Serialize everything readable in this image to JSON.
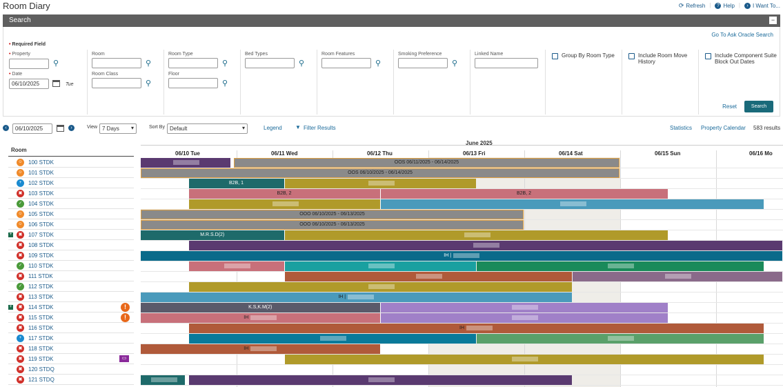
{
  "app": {
    "title": "Room Diary"
  },
  "toplinks": {
    "refresh": "Refresh",
    "help": "Help",
    "iwant": "I Want To..."
  },
  "search": {
    "title": "Search",
    "ask_oracle": "Go To Ask Oracle Search",
    "required_field": "Required Field",
    "property_label": "Property",
    "date_label": "Date",
    "date_value": "06/10/2025",
    "day_abbr": "Tue",
    "room_label": "Room",
    "room_class_label": "Room Class",
    "room_type_label": "Room Type",
    "floor_label": "Floor",
    "bed_types_label": "Bed Types",
    "room_features_label": "Room Features",
    "smoking_label": "Smoking Preference",
    "linked_name_label": "Linked Name",
    "group_by_label": "Group By Room Type",
    "room_move_label": "Include Room Move History",
    "component_label": "Include Component Suite Block Out Dates",
    "reset": "Reset",
    "search_button": "Search"
  },
  "toolbar": {
    "date": "06/10/2025",
    "view_label": "View",
    "view_value": "7 Days",
    "sortby_label": "Sort By",
    "sortby_value": "Default",
    "legend": "Legend",
    "filter": "Filter Results",
    "statistics": "Statistics",
    "property_calendar": "Property Calendar",
    "results": "583 results"
  },
  "grid": {
    "room_header": "Room",
    "month": "June 2025",
    "days": [
      "06/10 Tue",
      "06/11 Wed",
      "06/12 Thu",
      "06/13 Fri",
      "06/14 Sat",
      "06/15 Sun",
      "06/16 Mo"
    ],
    "rooms": [
      {
        "name": "100 STDK",
        "color": "#f08a2a",
        "icon": "person-icon"
      },
      {
        "name": "101 STDK",
        "color": "#f08a2a",
        "icon": "person-icon"
      },
      {
        "name": "102 STDK",
        "color": "#1a8ad0",
        "icon": "plus-icon"
      },
      {
        "name": "103 STDK",
        "color": "#d0302a",
        "icon": "lock-icon"
      },
      {
        "name": "104 STDK",
        "color": "#4a9a3a",
        "icon": "check-icon"
      },
      {
        "name": "105 STDK",
        "color": "#f08a2a",
        "icon": "person-icon"
      },
      {
        "name": "106 STDK",
        "color": "#f08a2a",
        "icon": "person-icon"
      },
      {
        "name": "107 STDK",
        "color": "#d0302a",
        "icon": "lock-icon"
      },
      {
        "name": "108 STDK",
        "color": "#d0302a",
        "icon": "lock-icon"
      },
      {
        "name": "109 STDK",
        "color": "#d0302a",
        "icon": "lock-icon"
      },
      {
        "name": "110 STDK",
        "color": "#4a9a3a",
        "icon": "check-icon"
      },
      {
        "name": "111 STDK",
        "color": "#d0302a",
        "icon": "lock-icon"
      },
      {
        "name": "112 STDK",
        "color": "#4a9a3a",
        "icon": "check-icon"
      },
      {
        "name": "113 STDK",
        "color": "#d0302a",
        "icon": "lock-icon"
      },
      {
        "name": "114 STDK",
        "color": "#d0302a",
        "icon": "lock-icon"
      },
      {
        "name": "115 STDK",
        "color": "#d0302a",
        "icon": "lock-icon"
      },
      {
        "name": "116 STDK",
        "color": "#d0302a",
        "icon": "lock-icon"
      },
      {
        "name": "117 STDK",
        "color": "#1a8ad0",
        "icon": "plus-icon"
      },
      {
        "name": "118 STDK",
        "color": "#d0302a",
        "icon": "lock-icon"
      },
      {
        "name": "119 STDK",
        "color": "#d0302a",
        "icon": "lock-icon"
      },
      {
        "name": "120 STDQ",
        "color": "#d0302a",
        "icon": "lock-icon"
      },
      {
        "name": "121 STDQ",
        "color": "#d0302a",
        "icon": "lock-icon"
      }
    ],
    "bars": [
      {
        "row": 0,
        "start": 0.0,
        "end": 0.94,
        "color": "#5a3a70",
        "label": "",
        "blur": true
      },
      {
        "row": 0,
        "start": 0.97,
        "end": 5.0,
        "color": "#8a8a8a",
        "label": "OOS 06/11/2025 - 06/14/2025"
      },
      {
        "row": 1,
        "start": 0.0,
        "end": 5.0,
        "color": "#8a8a8a",
        "label": "OOS 06/10/2025 - 06/14/2025"
      },
      {
        "row": 2,
        "start": 0.5,
        "end": 1.5,
        "color": "#1e6a6a",
        "label": "B2B, 1"
      },
      {
        "row": 2,
        "start": 1.5,
        "end": 3.5,
        "color": "#b09a2a",
        "label": "",
        "blur": true
      },
      {
        "row": 3,
        "start": 0.5,
        "end": 2.5,
        "color": "#c8707a",
        "label": "B2B, 2"
      },
      {
        "row": 3,
        "start": 2.5,
        "end": 5.5,
        "color": "#c8707a",
        "label": "B2B, 2"
      },
      {
        "row": 4,
        "start": 0.5,
        "end": 2.5,
        "color": "#b09a2a",
        "label": "",
        "blur": true
      },
      {
        "row": 4,
        "start": 2.5,
        "end": 6.5,
        "color": "#4a9abb",
        "label": "",
        "blur": true
      },
      {
        "row": 5,
        "start": 0.0,
        "end": 4.0,
        "color": "#8a8a8a",
        "label": "OOO 06/10/2025 - 06/13/2025"
      },
      {
        "row": 6,
        "start": 0.0,
        "end": 4.0,
        "color": "#8a8a8a",
        "label": "OOO 06/10/2025 - 06/13/2025"
      },
      {
        "row": 7,
        "start": 0.0,
        "end": 1.5,
        "color": "#1e6a6a",
        "label": "M.R.S.D(2)"
      },
      {
        "row": 7,
        "start": 1.5,
        "end": 5.5,
        "color": "#b09a2a",
        "label": "",
        "blur": true
      },
      {
        "row": 8,
        "start": 0.5,
        "end": 6.7,
        "color": "#5a3a70",
        "label": "",
        "blur": true
      },
      {
        "row": 9,
        "start": 0.0,
        "end": 6.7,
        "color": "#0a6a8a",
        "label": "IH |",
        "blur": true
      },
      {
        "row": 10,
        "start": 0.5,
        "end": 1.5,
        "color": "#c8707a",
        "label": "",
        "blur": true
      },
      {
        "row": 10,
        "start": 1.5,
        "end": 3.5,
        "color": "#1aa0a0",
        "label": "",
        "blur": true
      },
      {
        "row": 10,
        "start": 3.5,
        "end": 6.5,
        "color": "#1a8a5a",
        "label": "",
        "blur": true
      },
      {
        "row": 11,
        "start": 1.5,
        "end": 4.5,
        "color": "#b05a3a",
        "label": "",
        "blur": true
      },
      {
        "row": 11,
        "start": 4.5,
        "end": 6.7,
        "color": "#8a6a8a",
        "label": "",
        "blur": true
      },
      {
        "row": 12,
        "start": 0.5,
        "end": 4.5,
        "color": "#b09a2a",
        "label": "",
        "blur": true
      },
      {
        "row": 13,
        "start": 0.0,
        "end": 4.5,
        "color": "#4a9abb",
        "label": "IH |",
        "blur": true
      },
      {
        "row": 14,
        "start": 0.0,
        "end": 2.5,
        "color": "#5a5a6a",
        "label": "K.S,K.M(2)"
      },
      {
        "row": 14,
        "start": 2.5,
        "end": 5.5,
        "color": "#a080c8",
        "label": "",
        "blur": true
      },
      {
        "row": 15,
        "start": 0.0,
        "end": 2.5,
        "color": "#c8707a",
        "label": "IH",
        "blur": true
      },
      {
        "row": 15,
        "start": 2.5,
        "end": 5.5,
        "color": "#a080c8",
        "label": "",
        "blur": true
      },
      {
        "row": 16,
        "start": 0.5,
        "end": 6.5,
        "color": "#b05a3a",
        "label": "IH",
        "blur": true
      },
      {
        "row": 17,
        "start": 0.5,
        "end": 3.5,
        "color": "#0a7a9a",
        "label": "",
        "blur": true
      },
      {
        "row": 17,
        "start": 3.5,
        "end": 6.5,
        "color": "#5aa06a",
        "label": "",
        "blur": true
      },
      {
        "row": 18,
        "start": 0.0,
        "end": 2.5,
        "color": "#b05a3a",
        "label": "IH",
        "blur": true
      },
      {
        "row": 19,
        "start": 1.5,
        "end": 6.5,
        "color": "#b09a2a",
        "label": "",
        "blur": true
      },
      {
        "row": 21,
        "start": 0.0,
        "end": 0.47,
        "color": "#1e6a6a",
        "label": "",
        "blur": true
      },
      {
        "row": 21,
        "start": 0.5,
        "end": 4.5,
        "color": "#5a3a70",
        "label": "",
        "blur": true
      }
    ]
  }
}
